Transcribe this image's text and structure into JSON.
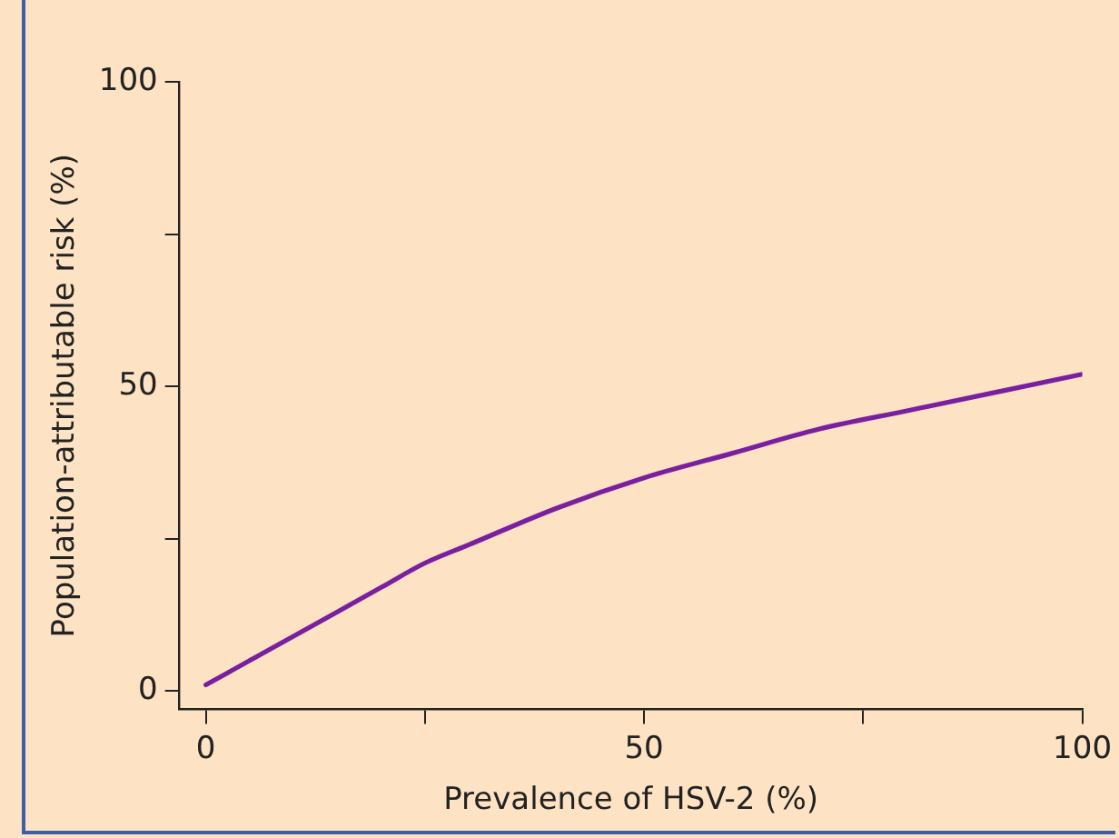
{
  "chart_data": {
    "type": "line",
    "xlabel": "Prevalence of HSV-2 (%)",
    "ylabel": "Population-attributable risk (%)",
    "x": [
      0,
      5,
      10,
      15,
      20,
      25,
      30,
      40,
      50,
      60,
      70,
      80,
      90,
      100
    ],
    "series": [
      {
        "color": "#7a1fa0",
        "values": [
          1,
          5,
          9,
          13,
          17,
          21,
          24,
          30,
          35,
          39,
          43,
          46,
          49,
          52
        ]
      }
    ],
    "xlim": [
      -3,
      100
    ],
    "ylim": [
      -3,
      100
    ],
    "xticks": [
      0,
      {
        "value": 25,
        "label": null
      },
      50,
      {
        "value": 75,
        "label": null
      },
      100
    ],
    "yticks": [
      0,
      {
        "value": 25,
        "label": null
      },
      50,
      {
        "value": 75,
        "label": null
      },
      100
    ],
    "grid": false,
    "legend": false,
    "marker": "none",
    "line_style": "solid"
  }
}
